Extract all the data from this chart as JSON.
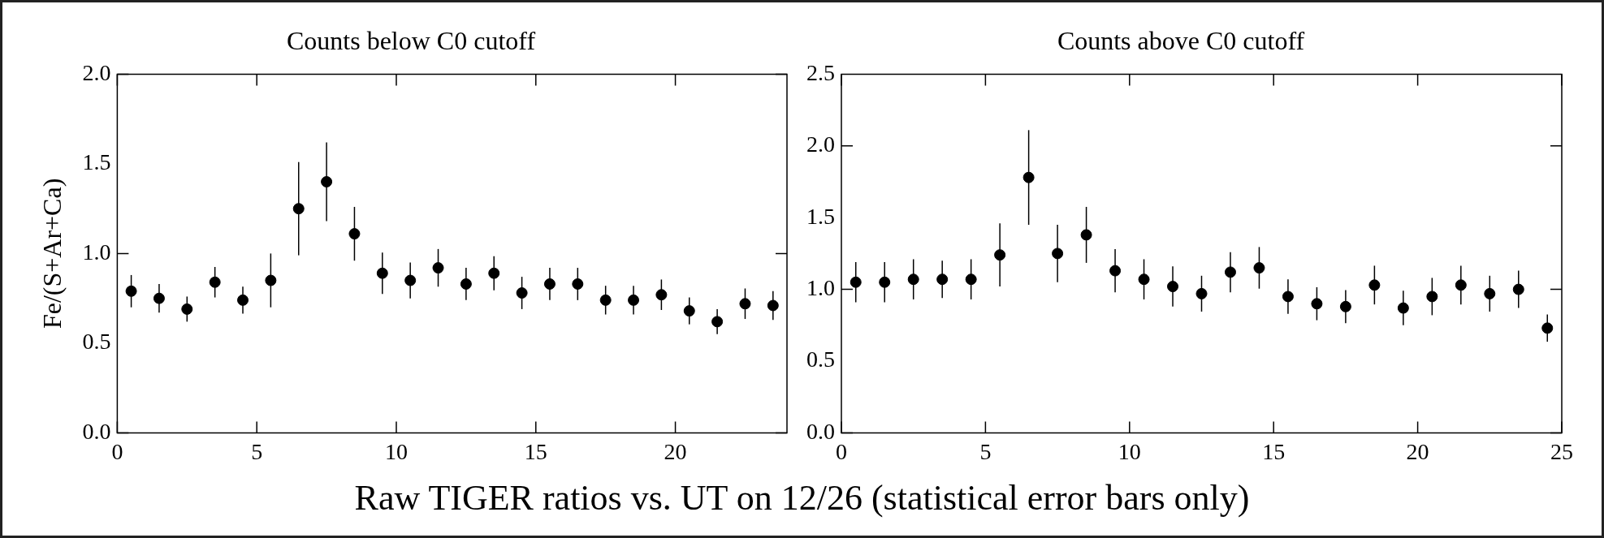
{
  "chart_data": [
    {
      "type": "scatter",
      "title": "Counts below C0 cutoff",
      "ylabel": "Fe/(S+Ar+Ca)",
      "x": [
        0.5,
        1.5,
        2.5,
        3.5,
        4.5,
        5.5,
        6.5,
        7.5,
        8.5,
        9.5,
        10.5,
        11.5,
        12.5,
        13.5,
        14.5,
        15.5,
        16.5,
        17.5,
        18.5,
        19.5,
        20.5,
        21.5,
        22.5,
        23.5
      ],
      "values": [
        0.79,
        0.75,
        0.69,
        0.84,
        0.74,
        0.85,
        1.25,
        1.4,
        1.11,
        0.89,
        0.85,
        0.92,
        0.83,
        0.89,
        0.78,
        0.83,
        0.83,
        0.74,
        0.74,
        0.77,
        0.68,
        0.62,
        0.72,
        0.71
      ],
      "errors": [
        0.09,
        0.08,
        0.07,
        0.085,
        0.075,
        0.15,
        0.26,
        0.22,
        0.15,
        0.115,
        0.1,
        0.105,
        0.09,
        0.095,
        0.09,
        0.09,
        0.09,
        0.08,
        0.08,
        0.085,
        0.075,
        0.07,
        0.085,
        0.08
      ],
      "color": "#000000",
      "marker": "circle",
      "xlim": [
        0,
        24
      ],
      "xticks": [
        0,
        5,
        10,
        15,
        20
      ],
      "ylim": [
        0,
        2.0
      ],
      "yticks": [
        {
          "value": 0,
          "label": "0.0"
        },
        0.5,
        {
          "value": 1,
          "label": "1.0"
        },
        1.5,
        {
          "value": 2,
          "label": "2.0"
        }
      ],
      "grid": false,
      "legend": false,
      "annotations": [
        "Raw TIGER ratios vs. UT on 12/26 (statistical error bars only)"
      ]
    },
    {
      "type": "scatter",
      "title": "Counts above C0 cutoff",
      "x": [
        0.5,
        1.5,
        2.5,
        3.5,
        4.5,
        5.5,
        6.5,
        7.5,
        8.5,
        9.5,
        10.5,
        11.5,
        12.5,
        13.5,
        14.5,
        15.5,
        16.5,
        17.5,
        18.5,
        19.5,
        20.5,
        21.5,
        22.5,
        23.5,
        24.5
      ],
      "values": [
        1.05,
        1.05,
        1.07,
        1.07,
        1.07,
        1.24,
        1.78,
        1.25,
        1.38,
        1.13,
        1.07,
        1.02,
        0.97,
        1.12,
        1.15,
        0.95,
        0.9,
        0.88,
        1.03,
        0.87,
        0.95,
        1.03,
        0.97,
        1.0,
        0.73
      ],
      "errors": [
        0.14,
        0.14,
        0.14,
        0.13,
        0.14,
        0.22,
        0.33,
        0.2,
        0.195,
        0.15,
        0.14,
        0.14,
        0.125,
        0.14,
        0.145,
        0.12,
        0.115,
        0.115,
        0.135,
        0.12,
        0.13,
        0.135,
        0.125,
        0.13,
        0.095
      ],
      "color": "#000000",
      "marker": "circle",
      "xlim": [
        0,
        25
      ],
      "xticks": [
        0,
        5,
        10,
        15,
        20,
        25
      ],
      "ylim": [
        0,
        2.5
      ],
      "yticks": [
        {
          "value": 0,
          "label": "0.0"
        },
        0.5,
        {
          "value": 1,
          "label": "1.0"
        },
        1.5,
        {
          "value": 2,
          "label": "2.0"
        },
        2.5
      ],
      "grid": false,
      "legend": false
    }
  ]
}
